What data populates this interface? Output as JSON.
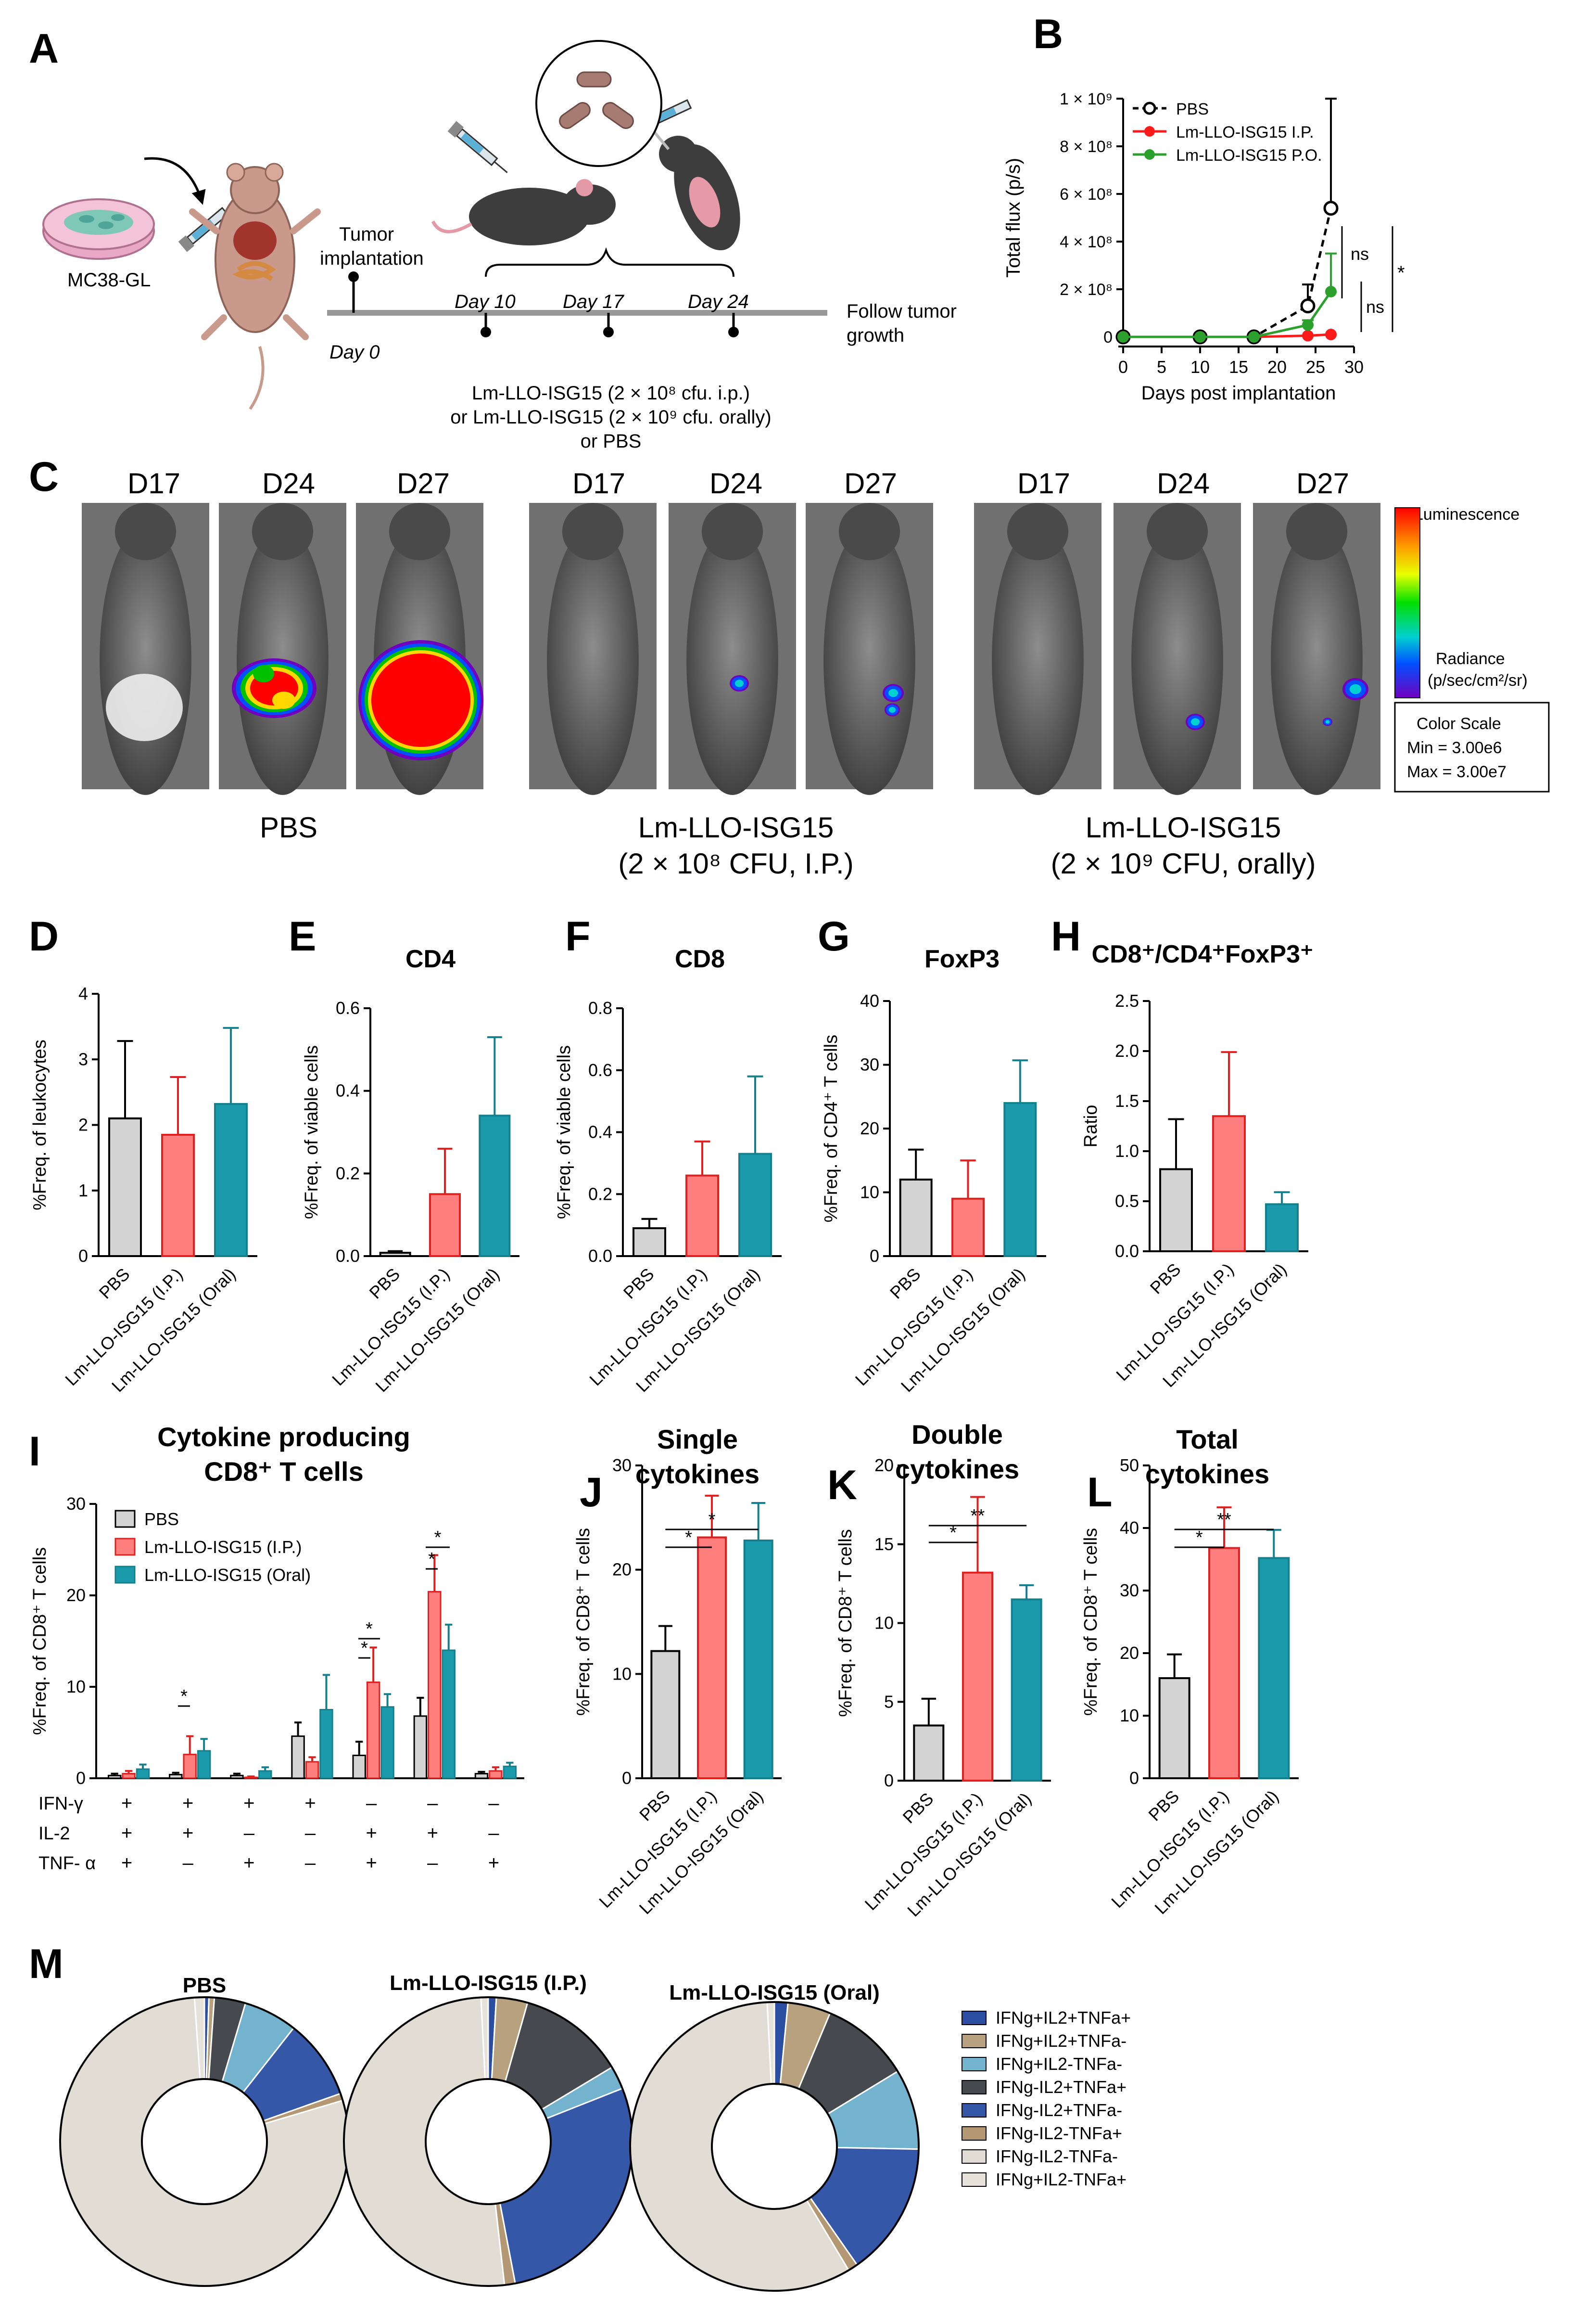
{
  "panel_letters": [
    "A",
    "B",
    "C",
    "D",
    "E",
    "F",
    "G",
    "H",
    "I",
    "J",
    "K",
    "L",
    "M"
  ],
  "panel_a": {
    "cell_label": "MC38-GL",
    "tumor_implantation_label": [
      "Tumor",
      "implantation"
    ],
    "day_labels": [
      "Day 0",
      "Day 10",
      "Day 17",
      "Day 24"
    ],
    "follow_label": [
      "Follow tumor",
      "growth"
    ],
    "treatment_lines": [
      "Lm-LLO-ISG15 (2 × 10⁸ cfu. i.p.)",
      "or Lm-LLO-ISG15 (2 × 10⁹ cfu. orally)",
      "or PBS"
    ]
  },
  "panel_c": {
    "groups": [
      {
        "name": "PBS",
        "days": [
          "D17",
          "D24",
          "D27"
        ]
      },
      {
        "name": "Lm-LLO-ISG15",
        "sub": "(2 × 10⁸ CFU, I.P.)",
        "days": [
          "D17",
          "D24",
          "D27"
        ]
      },
      {
        "name": "Lm-LLO-ISG15",
        "sub": "(2 × 10⁹ CFU, orally)",
        "days": [
          "D17",
          "D24",
          "D27"
        ]
      }
    ],
    "scale_title": "Luminescence",
    "scale_unit": [
      "Radiance",
      "(p/sec/cm²/sr)"
    ],
    "color_scale_box": [
      "Color Scale",
      "Min = 3.00e6",
      "Max = 3.00e7"
    ],
    "colors": {
      "hot": "#ff0000",
      "warm": "#ffd700",
      "mid": "#00c000",
      "cool": "#0050ff",
      "low": "#7000c0"
    }
  },
  "colors": {
    "pbs": "#d3d3d3",
    "ip": "#ff7f7f",
    "oral": "#1a9aaa",
    "ip_edge": "#e0201f",
    "oral_edge": "#14808d"
  },
  "chart_data": [
    {
      "id": "B",
      "type": "line",
      "title": "",
      "xlabel": "Days post implantation",
      "ylabel": "Total flux (p/s)",
      "xlim": [
        0,
        30
      ],
      "ylim": [
        0,
        1000000000
      ],
      "xticks": [
        0,
        5,
        10,
        15,
        20,
        25,
        30
      ],
      "ytick_labels": [
        "0",
        "2 × 10⁸",
        "4 × 10⁸",
        "6 × 10⁸",
        "8 × 10⁸",
        "1 × 10⁹"
      ],
      "series": [
        {
          "name": "PBS",
          "x": [
            0,
            10,
            17,
            24,
            27
          ],
          "y": [
            0,
            0,
            0,
            130000000,
            540000000
          ],
          "err": [
            0,
            0,
            0,
            90000000,
            460000000
          ],
          "color": "#000000"
        },
        {
          "name": "Lm-LLO-ISG15 I.P.",
          "x": [
            0,
            10,
            17,
            24,
            27
          ],
          "y": [
            0,
            0,
            0,
            5000000,
            10000000
          ],
          "err": [
            0,
            0,
            0,
            0,
            0
          ],
          "color": "#ff1a1a"
        },
        {
          "name": "Lm-LLO-ISG15 P.O.",
          "x": [
            0,
            10,
            17,
            24,
            27
          ],
          "y": [
            0,
            0,
            0,
            50000000,
            190000000
          ],
          "err": [
            0,
            0,
            0,
            20000000,
            160000000
          ],
          "color": "#2ca02c"
        }
      ],
      "annotations": [
        "ns",
        "ns",
        "*"
      ]
    },
    {
      "id": "D",
      "type": "bar",
      "title": "",
      "ylabel": "%Freq. of leukocytes",
      "ylim": [
        0,
        4
      ],
      "yticks": [
        "0",
        "1",
        "2",
        "3",
        "4"
      ],
      "categories": [
        "PBS",
        "Lm-LLO-ISG15 (I.P.)",
        "Lm-LLO-ISG15 (Oral)"
      ],
      "values": [
        2.1,
        1.85,
        2.32
      ],
      "errors": [
        1.18,
        0.88,
        1.16
      ]
    },
    {
      "id": "E",
      "type": "bar",
      "title": "CD4",
      "ylabel": "%Freq. of viable cells",
      "ylim": [
        0,
        0.6
      ],
      "yticks": [
        "0.0",
        "0.2",
        "0.4",
        "0.6"
      ],
      "categories": [
        "PBS",
        "Lm-LLO-ISG15 (I.P.)",
        "Lm-LLO-ISG15 (Oral)"
      ],
      "values": [
        0.008,
        0.15,
        0.34
      ],
      "errors": [
        0.004,
        0.11,
        0.19
      ]
    },
    {
      "id": "F",
      "type": "bar",
      "title": "CD8",
      "ylabel": "%Freq. of viable cells",
      "ylim": [
        0,
        0.8
      ],
      "yticks": [
        "0.0",
        "0.2",
        "0.4",
        "0.6",
        "0.8"
      ],
      "categories": [
        "PBS",
        "Lm-LLO-ISG15 (I.P.)",
        "Lm-LLO-ISG15 (Oral)"
      ],
      "values": [
        0.09,
        0.26,
        0.33
      ],
      "errors": [
        0.03,
        0.11,
        0.25
      ]
    },
    {
      "id": "G",
      "type": "bar",
      "title": "FoxP3",
      "ylabel": "%Freq. of CD4⁺ T cells",
      "ylim": [
        0,
        40
      ],
      "yticks": [
        "0",
        "10",
        "20",
        "30",
        "40"
      ],
      "categories": [
        "PBS",
        "Lm-LLO-ISG15 (I.P.)",
        "Lm-LLO-ISG15 (Oral)"
      ],
      "values": [
        12.0,
        9.0,
        24.0
      ],
      "errors": [
        4.7,
        6.0,
        6.7
      ]
    },
    {
      "id": "H",
      "type": "bar",
      "title": "CD8⁺/CD4⁺FoxP3⁺",
      "ylabel": "Ratio",
      "ylim": [
        0,
        2.5
      ],
      "yticks": [
        "0.0",
        "0.5",
        "1.0",
        "1.5",
        "2.0",
        "2.5"
      ],
      "categories": [
        "PBS",
        "Lm-LLO-ISG15 (I.P.)",
        "Lm-LLO-ISG15 (Oral)"
      ],
      "values": [
        0.82,
        1.35,
        0.47
      ],
      "errors": [
        0.5,
        0.64,
        0.12
      ]
    },
    {
      "id": "I",
      "type": "bar",
      "title": "Cytokine producing CD8⁺ T cells",
      "title_lines": [
        "Cytokine producing",
        "CD8⁺ T cells"
      ],
      "ylabel": "%Freq. of CD8⁺ T cells",
      "ylim": [
        0,
        30
      ],
      "yticks": [
        "0",
        "10",
        "20",
        "30"
      ],
      "row_labels": [
        "IFN-γ",
        "IL-2",
        "TNF- α"
      ],
      "combos": [
        [
          "+",
          "+",
          "+"
        ],
        [
          "+",
          "+",
          "–"
        ],
        [
          "+",
          "–",
          "+"
        ],
        [
          "+",
          "–",
          "–"
        ],
        [
          "–",
          "+",
          "+"
        ],
        [
          "–",
          "+",
          "–"
        ],
        [
          "–",
          "–",
          "+"
        ]
      ],
      "series": [
        {
          "name": "PBS",
          "values": [
            0.3,
            0.4,
            0.3,
            4.6,
            2.5,
            6.8,
            0.5
          ],
          "errors": [
            0.2,
            0.2,
            0.2,
            1.5,
            1.5,
            2.0,
            0.2
          ]
        },
        {
          "name": "Lm-LLO-ISG15 (I.P.)",
          "values": [
            0.5,
            2.6,
            0.1,
            1.8,
            10.5,
            20.4,
            0.8
          ],
          "errors": [
            0.3,
            2.0,
            0.1,
            0.5,
            3.8,
            4.0,
            0.4
          ]
        },
        {
          "name": "Lm-LLO-ISG15 (Oral)",
          "values": [
            1.0,
            3.0,
            0.8,
            7.5,
            7.8,
            14.0,
            1.3
          ],
          "errors": [
            0.5,
            1.3,
            0.4,
            3.8,
            1.4,
            2.8,
            0.4
          ]
        }
      ],
      "significance": [
        "*",
        "*",
        "*",
        "*",
        "*"
      ]
    },
    {
      "id": "J",
      "type": "bar",
      "title": "Single cytokines",
      "title_lines": [
        "Single",
        "cytokines"
      ],
      "ylabel": "%Freq. of CD8⁺ T cells",
      "ylim": [
        0,
        30
      ],
      "yticks": [
        "0",
        "10",
        "20",
        "30"
      ],
      "categories": [
        "PBS",
        "Lm-LLO-ISG15 (I.P.)",
        "Lm-LLO-ISG15 (Oral)"
      ],
      "values": [
        12.2,
        23.1,
        22.8
      ],
      "errors": [
        2.4,
        4.0,
        3.6
      ],
      "significance": [
        "*",
        "*"
      ]
    },
    {
      "id": "K",
      "type": "bar",
      "title": "Double cytokines",
      "title_lines": [
        "Double",
        "cytokines"
      ],
      "ylabel": "%Freq. of CD8⁺ T cells",
      "ylim": [
        0,
        20
      ],
      "yticks": [
        "0",
        "5",
        "10",
        "15",
        "20"
      ],
      "categories": [
        "PBS",
        "Lm-LLO-ISG15 (I.P.)",
        "Lm-LLO-ISG15 (Oral)"
      ],
      "values": [
        3.5,
        13.2,
        11.5
      ],
      "errors": [
        1.7,
        4.8,
        0.9
      ],
      "significance": [
        "*",
        "**"
      ]
    },
    {
      "id": "L",
      "type": "bar",
      "title": "Total cytokines",
      "title_lines": [
        "Total",
        "cytokines"
      ],
      "ylabel": "%Freq. of CD8⁺ T cells",
      "ylim": [
        0,
        50
      ],
      "yticks": [
        "0",
        "10",
        "20",
        "30",
        "40",
        "50"
      ],
      "categories": [
        "PBS",
        "Lm-LLO-ISG15 (I.P.)",
        "Lm-LLO-ISG15 (Oral)"
      ],
      "values": [
        16.0,
        36.8,
        35.2
      ],
      "errors": [
        3.8,
        6.5,
        4.5
      ],
      "significance": [
        "*",
        "**"
      ]
    },
    {
      "id": "M",
      "type": "pie",
      "legend": [
        "IFNg+IL2+TNFa+",
        "IFNg+IL2+TNFa-",
        "IFNg+IL2-TNFa-",
        "IFNg-IL2+TNFa+",
        "IFNg-IL2+TNFa-",
        "IFNg-IL2-TNFa+",
        "IFNg-IL2-TNFa-",
        "IFNg+IL2-TNFa+"
      ],
      "legend_colors": [
        "#2b4ea2",
        "#b8a17f",
        "#74b3cd",
        "#464a4f",
        "#3457a8",
        "#b39873",
        "#e1ddd4",
        "#e6e2da"
      ],
      "slice_order": [
        "IFNg+IL2+TNFa+",
        "IFNg+IL2+TNFa-",
        "IFNg-IL2+TNFa+",
        "IFNg+IL2-TNFa-",
        "IFNg-IL2+TNFa-",
        "IFNg-IL2-TNFa+",
        "IFNg-IL2-TNFa-",
        "IFNg+IL2-TNFa+"
      ],
      "donuts": [
        {
          "title": "PBS",
          "values": [
            0.5,
            0.6,
            3.5,
            6.0,
            9.0,
            0.8,
            78.5,
            1.1
          ]
        },
        {
          "title": "Lm-LLO-ISG15 (I.P.)",
          "values": [
            0.9,
            3.5,
            12.0,
            2.6,
            28.0,
            1.2,
            51.0,
            0.8
          ]
        },
        {
          "title": "Lm-LLO-ISG15 (Oral)",
          "values": [
            1.5,
            4.8,
            10.0,
            9.0,
            15.0,
            1.1,
            57.8,
            0.8
          ]
        }
      ]
    }
  ]
}
